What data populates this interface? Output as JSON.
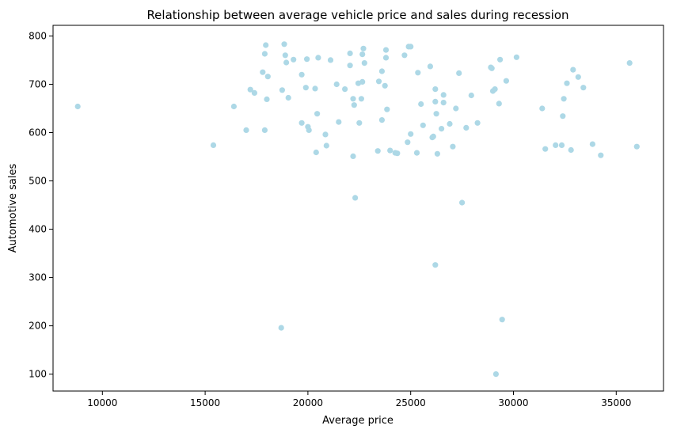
{
  "chart_data": {
    "type": "scatter",
    "title": "Relationship between average vehicle price and sales during recession",
    "xlabel": "Average price",
    "ylabel": "Automotive sales",
    "xlim": [
      7600,
      37300
    ],
    "ylim": [
      65,
      822
    ],
    "xticks": [
      10000,
      15000,
      20000,
      25000,
      30000,
      35000
    ],
    "yticks": [
      100,
      200,
      300,
      400,
      500,
      600,
      700,
      800
    ],
    "grid": false,
    "marker_color": "#add8e6",
    "points": [
      [
        8800,
        654
      ],
      [
        15400,
        574
      ],
      [
        16400,
        654
      ],
      [
        17000,
        605
      ],
      [
        17200,
        689
      ],
      [
        17400,
        682
      ],
      [
        17800,
        725
      ],
      [
        17900,
        605
      ],
      [
        17900,
        763
      ],
      [
        17950,
        781
      ],
      [
        18000,
        669
      ],
      [
        18050,
        716
      ],
      [
        18700,
        196
      ],
      [
        18750,
        688
      ],
      [
        18850,
        783
      ],
      [
        18900,
        760
      ],
      [
        18950,
        745
      ],
      [
        19050,
        672
      ],
      [
        19300,
        751
      ],
      [
        19700,
        620
      ],
      [
        19700,
        720
      ],
      [
        19900,
        693
      ],
      [
        19950,
        752
      ],
      [
        20000,
        612
      ],
      [
        20050,
        605
      ],
      [
        20350,
        691
      ],
      [
        20400,
        559
      ],
      [
        20450,
        639
      ],
      [
        20500,
        755
      ],
      [
        20850,
        596
      ],
      [
        20900,
        573
      ],
      [
        21100,
        750
      ],
      [
        21400,
        700
      ],
      [
        21500,
        622
      ],
      [
        21800,
        690
      ],
      [
        22050,
        739
      ],
      [
        22050,
        764
      ],
      [
        22200,
        551
      ],
      [
        22200,
        670
      ],
      [
        22250,
        657
      ],
      [
        22300,
        465
      ],
      [
        22450,
        702
      ],
      [
        22500,
        620
      ],
      [
        22600,
        670
      ],
      [
        22650,
        705
      ],
      [
        22650,
        762
      ],
      [
        22700,
        774
      ],
      [
        22750,
        744
      ],
      [
        23400,
        562
      ],
      [
        23450,
        706
      ],
      [
        23600,
        626
      ],
      [
        23600,
        727
      ],
      [
        23750,
        697
      ],
      [
        23800,
        755
      ],
      [
        23800,
        771
      ],
      [
        23850,
        648
      ],
      [
        24000,
        563
      ],
      [
        24250,
        558
      ],
      [
        24350,
        557
      ],
      [
        24700,
        760
      ],
      [
        24850,
        580
      ],
      [
        24900,
        778
      ],
      [
        25000,
        597
      ],
      [
        25000,
        778
      ],
      [
        25300,
        558
      ],
      [
        25350,
        724
      ],
      [
        25500,
        659
      ],
      [
        25600,
        615
      ],
      [
        25950,
        737
      ],
      [
        26050,
        590
      ],
      [
        26100,
        592
      ],
      [
        26200,
        690
      ],
      [
        26200,
        326
      ],
      [
        26200,
        664
      ],
      [
        26250,
        639
      ],
      [
        26300,
        556
      ],
      [
        26500,
        608
      ],
      [
        26600,
        678
      ],
      [
        26600,
        662
      ],
      [
        26900,
        618
      ],
      [
        27050,
        571
      ],
      [
        27200,
        650
      ],
      [
        27350,
        723
      ],
      [
        27500,
        455
      ],
      [
        27700,
        610
      ],
      [
        27950,
        677
      ],
      [
        28250,
        620
      ],
      [
        28900,
        735
      ],
      [
        28950,
        733
      ],
      [
        29000,
        686
      ],
      [
        29100,
        690
      ],
      [
        29150,
        100
      ],
      [
        29300,
        660
      ],
      [
        29350,
        751
      ],
      [
        29450,
        213
      ],
      [
        29650,
        707
      ],
      [
        30150,
        756
      ],
      [
        31400,
        650
      ],
      [
        31550,
        566
      ],
      [
        32050,
        574
      ],
      [
        32350,
        574
      ],
      [
        32400,
        634
      ],
      [
        32450,
        670
      ],
      [
        32600,
        702
      ],
      [
        32800,
        564
      ],
      [
        32900,
        730
      ],
      [
        33150,
        715
      ],
      [
        33400,
        693
      ],
      [
        33850,
        576
      ],
      [
        34250,
        553
      ],
      [
        35650,
        744
      ],
      [
        36000,
        571
      ]
    ]
  }
}
